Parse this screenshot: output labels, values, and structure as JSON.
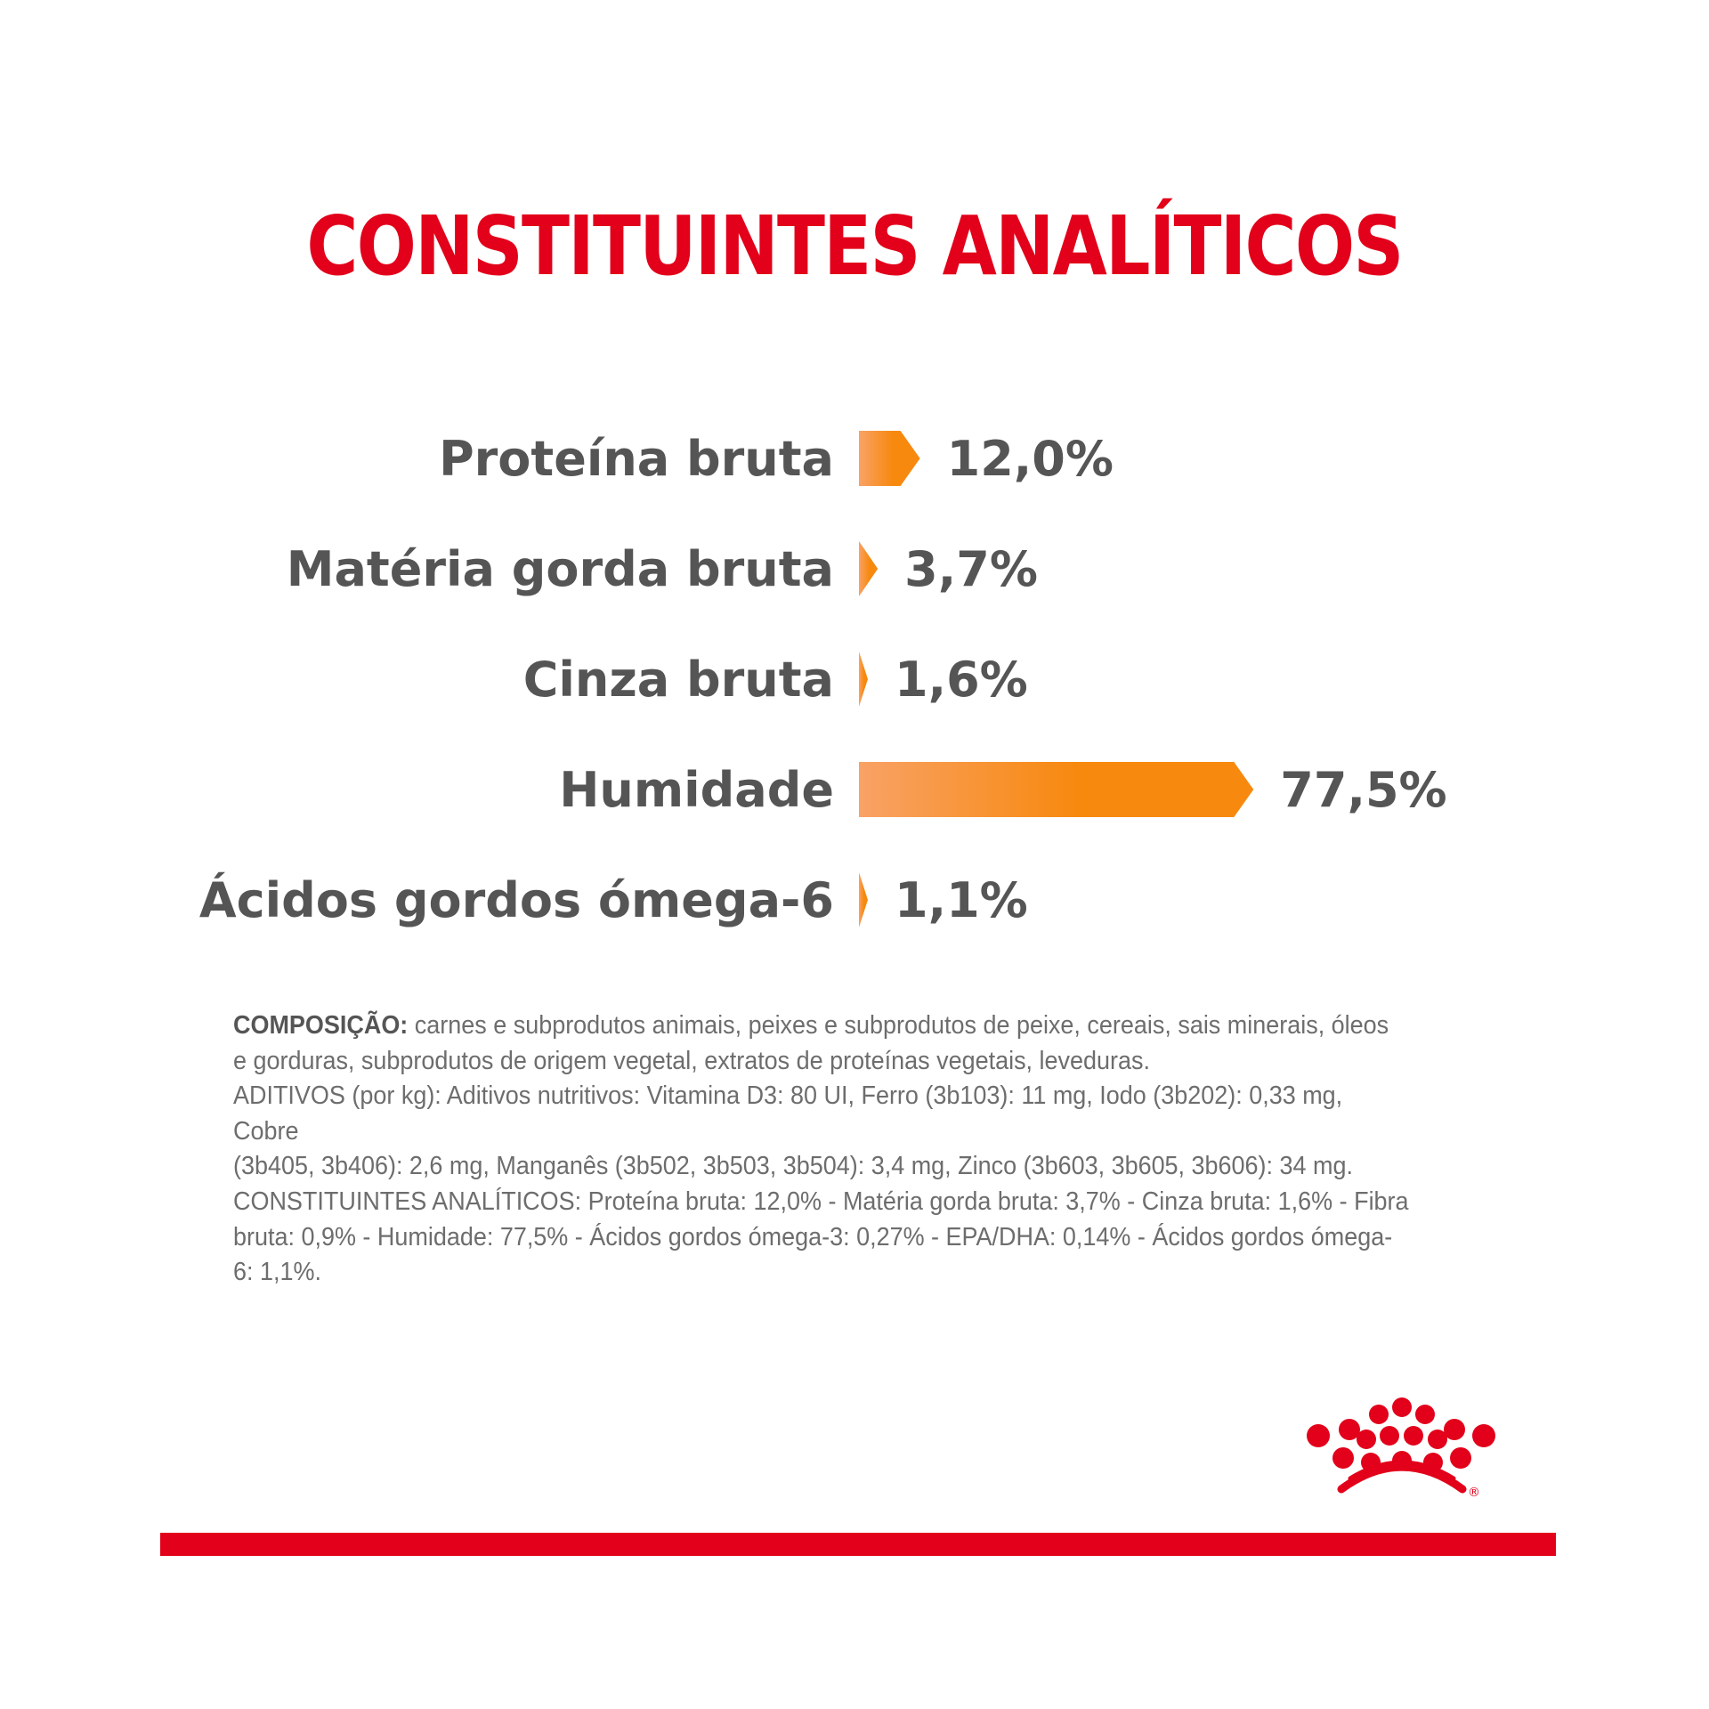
{
  "title": "CONSTITUINTES ANALÍTICOS",
  "chart_data": {
    "type": "bar",
    "orientation": "horizontal",
    "categories": [
      "Proteína bruta",
      "Matéria gorda bruta",
      "Cinza bruta",
      "Humidade",
      "Ácidos gordos ómega-6"
    ],
    "values": [
      12.0,
      3.7,
      1.6,
      77.5,
      1.1
    ],
    "value_labels": [
      "12,0%",
      "3,7%",
      "1,6%",
      "77,5%",
      "1,1%"
    ],
    "unit": "%",
    "bar_color_start": "#f9a266",
    "bar_color_end": "#f7890f",
    "label_color": "#555555"
  },
  "composition": {
    "lead": "COMPOSIÇÃO:",
    "text_1": " carnes e subprodutos animais, peixes e subprodutos de peixe, cereais, sais minerais, óleos",
    "text_2": "e gorduras, subprodutos de origem vegetal, extratos de proteínas vegetais, leveduras.",
    "text_3": "ADITIVOS (por kg): Aditivos nutritivos: Vitamina D3: 80 UI, Ferro (3b103): 11 mg, Iodo (3b202): 0,33 mg, Cobre",
    "text_4": "(3b405, 3b406): 2,6 mg, Manganês (3b502, 3b503, 3b504): 3,4 mg, Zinco (3b603, 3b605, 3b606): 34 mg.",
    "text_5": "CONSTITUINTES ANALÍTICOS: Proteína bruta: 12,0% - Matéria gorda bruta: 3,7% - Cinza bruta: 1,6% - Fibra",
    "text_6": "bruta: 0,9% - Humidade: 77,5% - Ácidos gordos ómega-3: 0,27% - EPA/DHA: 0,14% - Ácidos gordos ómega-6: 1,1%."
  },
  "logo": {
    "name": "crown-logo",
    "color": "#e2001a",
    "registered_mark": "®"
  },
  "accent_color": "#e2001a"
}
